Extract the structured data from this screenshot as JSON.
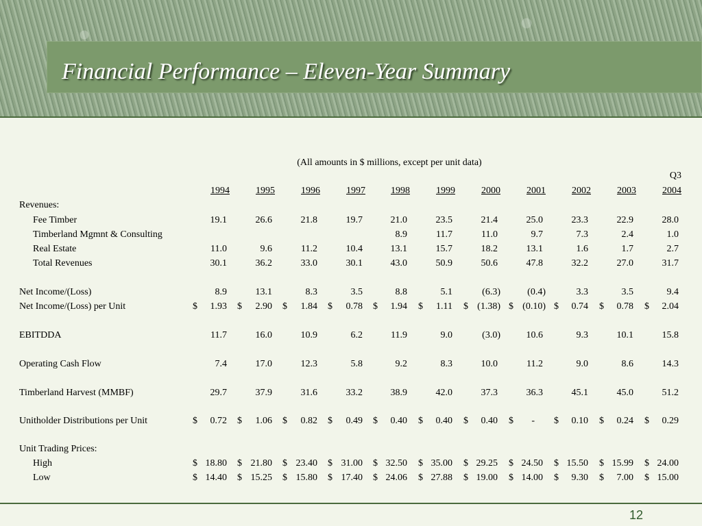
{
  "slide": {
    "title": "Financial Performance – Eleven-Year Summary",
    "subtitle": "(All amounts in $ millions, except per unit data)",
    "page_number": "12"
  },
  "table": {
    "q3_label": "Q3",
    "years": [
      "1994",
      "1995",
      "1996",
      "1997",
      "1998",
      "1999",
      "2000",
      "2001",
      "2002",
      "2003",
      "2004"
    ],
    "rows": [
      {
        "label": "Revenues:",
        "indent": false,
        "dollar": false,
        "values": [
          "",
          "",
          "",
          "",
          "",
          "",
          "",
          "",
          "",
          "",
          ""
        ]
      },
      {
        "label": "Fee Timber",
        "indent": true,
        "dollar": false,
        "values": [
          "19.1",
          "26.6",
          "21.8",
          "19.7",
          "21.0",
          "23.5",
          "21.4",
          "25.0",
          "23.3",
          "22.9",
          "28.0"
        ]
      },
      {
        "label": "Timberland Mgmnt & Consulting",
        "indent": true,
        "dollar": false,
        "values": [
          "",
          "",
          "",
          "",
          "8.9",
          "11.7",
          "11.0",
          "9.7",
          "7.3",
          "2.4",
          "1.0"
        ]
      },
      {
        "label": "Real Estate",
        "indent": true,
        "dollar": false,
        "values": [
          "11.0",
          "9.6",
          "11.2",
          "10.4",
          "13.1",
          "15.7",
          "18.2",
          "13.1",
          "1.6",
          "1.7",
          "2.7"
        ]
      },
      {
        "label": "Total Revenues",
        "indent": true,
        "dollar": false,
        "values": [
          "30.1",
          "36.2",
          "33.0",
          "30.1",
          "43.0",
          "50.9",
          "50.6",
          "47.8",
          "32.2",
          "27.0",
          "31.7"
        ]
      },
      {
        "label": "Net Income/(Loss)",
        "indent": false,
        "dollar": false,
        "values": [
          "8.9",
          "13.1",
          "8.3",
          "3.5",
          "8.8",
          "5.1",
          "(6.3)",
          "(0.4)",
          "3.3",
          "3.5",
          "9.4"
        ]
      },
      {
        "label": "Net Income/(Loss) per Unit",
        "indent": false,
        "dollar": true,
        "values": [
          "1.93",
          "2.90",
          "1.84",
          "0.78",
          "1.94",
          "1.11",
          "(1.38)",
          "(0.10)",
          "0.74",
          "0.78",
          "2.04"
        ]
      },
      {
        "label": "EBITDDA",
        "indent": false,
        "dollar": false,
        "values": [
          "11.7",
          "16.0",
          "10.9",
          "6.2",
          "11.9",
          "9.0",
          "(3.0)",
          "10.6",
          "9.3",
          "10.1",
          "15.8"
        ]
      },
      {
        "label": "Operating Cash Flow",
        "indent": false,
        "dollar": false,
        "values": [
          "7.4",
          "17.0",
          "12.3",
          "5.8",
          "9.2",
          "8.3",
          "10.0",
          "11.2",
          "9.0",
          "8.6",
          "14.3"
        ]
      },
      {
        "label": "Timberland Harvest (MMBF)",
        "indent": false,
        "dollar": false,
        "values": [
          "29.7",
          "37.9",
          "31.6",
          "33.2",
          "38.9",
          "42.0",
          "37.3",
          "36.3",
          "45.1",
          "45.0",
          "51.2"
        ]
      },
      {
        "label": "Unitholder Distributions per Unit",
        "indent": false,
        "dollar": true,
        "values": [
          "0.72",
          "1.06",
          "0.82",
          "0.49",
          "0.40",
          "0.40",
          "0.40",
          "-",
          "0.10",
          "0.24",
          "0.29"
        ]
      },
      {
        "label": "Unit Trading Prices:",
        "indent": false,
        "dollar": false,
        "values": [
          "",
          "",
          "",
          "",
          "",
          "",
          "",
          "",
          "",
          "",
          ""
        ]
      },
      {
        "label": "High",
        "indent": true,
        "dollar": true,
        "values": [
          "18.80",
          "21.80",
          "23.40",
          "31.00",
          "32.50",
          "35.00",
          "29.25",
          "24.50",
          "15.50",
          "15.99",
          "24.00"
        ]
      },
      {
        "label": "Low",
        "indent": true,
        "dollar": true,
        "values": [
          "14.40",
          "15.25",
          "15.80",
          "17.40",
          "24.06",
          "27.88",
          "19.00",
          "14.00",
          "9.30",
          "7.00",
          "15.00"
        ]
      }
    ]
  }
}
